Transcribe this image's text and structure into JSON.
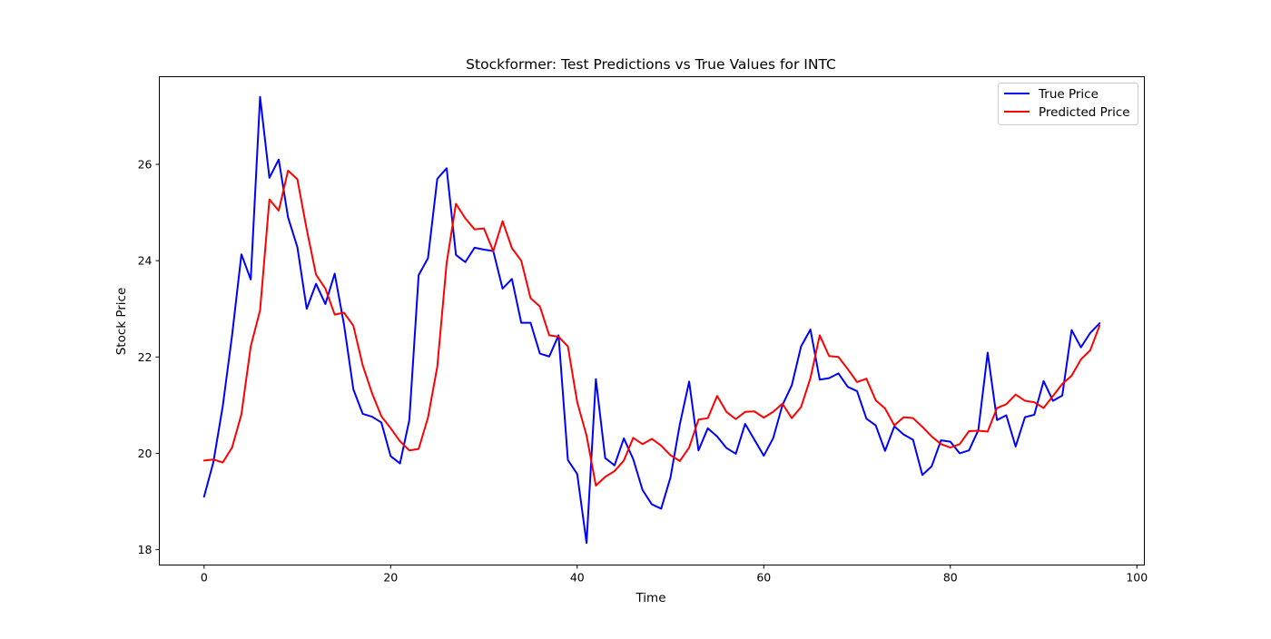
{
  "chart_data": {
    "type": "line",
    "title": "Stockformer: Test Predictions vs True Values for INTC",
    "xlabel": "Time",
    "ylabel": "Stock Price",
    "xlim": [
      -4.8,
      100.8
    ],
    "ylim": [
      17.68,
      27.82
    ],
    "xticks": [
      0,
      20,
      40,
      60,
      80,
      100
    ],
    "yticks": [
      18,
      20,
      22,
      24,
      26
    ],
    "grid": false,
    "legend_position": "top-right",
    "series": [
      {
        "name": "True Price",
        "color": "#0000ff",
        "x": [
          0,
          1,
          2,
          3,
          4,
          5,
          6,
          7,
          8,
          9,
          10,
          11,
          12,
          13,
          14,
          15,
          16,
          17,
          18,
          19,
          20,
          21,
          22,
          23,
          24,
          25,
          26,
          27,
          28,
          29,
          30,
          31,
          32,
          33,
          34,
          35,
          36,
          37,
          38,
          39,
          40,
          41,
          42,
          43,
          44,
          45,
          46,
          47,
          48,
          49,
          50,
          51,
          52,
          53,
          54,
          55,
          56,
          57,
          58,
          59,
          60,
          61,
          62,
          63,
          64,
          65,
          66,
          67,
          68,
          69,
          70,
          71,
          72,
          73,
          74,
          75,
          76,
          77,
          78,
          79,
          80,
          81,
          82,
          83,
          84,
          85,
          86,
          87,
          88,
          89,
          90,
          91,
          92,
          93,
          94,
          95,
          96
        ],
        "values": [
          19.1,
          19.82,
          20.98,
          22.45,
          24.13,
          23.61,
          27.4,
          25.72,
          26.1,
          24.9,
          24.28,
          23.0,
          23.52,
          23.1,
          23.73,
          22.67,
          21.33,
          20.82,
          20.76,
          20.64,
          19.94,
          19.79,
          20.69,
          23.7,
          24.05,
          25.7,
          25.92,
          24.12,
          23.97,
          24.27,
          24.23,
          24.2,
          23.42,
          23.62,
          22.71,
          22.71,
          22.07,
          22.01,
          22.45,
          19.86,
          19.57,
          18.14,
          21.54,
          19.9,
          19.75,
          20.31,
          19.88,
          19.24,
          18.94,
          18.85,
          19.5,
          20.6,
          21.49,
          20.06,
          20.52,
          20.35,
          20.11,
          19.99,
          20.61,
          20.28,
          19.95,
          20.31,
          21.0,
          21.41,
          22.22,
          22.57,
          21.53,
          21.56,
          21.66,
          21.38,
          21.29,
          20.72,
          20.58,
          20.05,
          20.56,
          20.39,
          20.28,
          19.55,
          19.73,
          20.27,
          20.24,
          20.0,
          20.06,
          20.48,
          22.09,
          20.69,
          20.79,
          20.14,
          20.75,
          20.8,
          21.5,
          21.09,
          21.2,
          22.56,
          22.2,
          22.5,
          22.7
        ]
      },
      {
        "name": "Predicted Price",
        "color": "#ff0000",
        "x": [
          0,
          1,
          2,
          3,
          4,
          5,
          6,
          7,
          8,
          9,
          10,
          11,
          12,
          13,
          14,
          15,
          16,
          17,
          18,
          19,
          20,
          21,
          22,
          23,
          24,
          25,
          26,
          27,
          28,
          29,
          30,
          31,
          32,
          33,
          34,
          35,
          36,
          37,
          38,
          39,
          40,
          41,
          42,
          43,
          44,
          45,
          46,
          47,
          48,
          49,
          50,
          51,
          52,
          53,
          54,
          55,
          56,
          57,
          58,
          59,
          60,
          61,
          62,
          63,
          64,
          65,
          66,
          67,
          68,
          69,
          70,
          71,
          72,
          73,
          74,
          75,
          76,
          77,
          78,
          79,
          80,
          81,
          82,
          83,
          84,
          85,
          86,
          87,
          88,
          89,
          90,
          91,
          92,
          93,
          94,
          95,
          96
        ],
        "values": [
          19.85,
          19.87,
          19.81,
          20.12,
          20.81,
          22.22,
          22.97,
          25.27,
          25.04,
          25.87,
          25.69,
          24.65,
          23.71,
          23.42,
          22.88,
          22.92,
          22.65,
          21.83,
          21.25,
          20.77,
          20.52,
          20.25,
          20.06,
          20.09,
          20.74,
          21.8,
          23.95,
          25.18,
          24.88,
          24.65,
          24.67,
          24.2,
          24.82,
          24.26,
          24.0,
          23.22,
          23.05,
          22.45,
          22.42,
          22.22,
          21.06,
          20.37,
          19.33,
          19.51,
          19.63,
          19.85,
          20.32,
          20.19,
          20.3,
          20.16,
          19.96,
          19.84,
          20.12,
          20.7,
          20.73,
          21.19,
          20.86,
          20.71,
          20.86,
          20.87,
          20.74,
          20.86,
          21.03,
          20.73,
          20.96,
          21.56,
          22.45,
          22.02,
          22.0,
          21.75,
          21.48,
          21.55,
          21.1,
          20.93,
          20.58,
          20.75,
          20.73,
          20.55,
          20.35,
          20.19,
          20.12,
          20.19,
          20.46,
          20.47,
          20.45,
          20.94,
          21.02,
          21.22,
          21.09,
          21.06,
          20.94,
          21.19,
          21.44,
          21.61,
          21.95,
          22.14,
          22.65
        ]
      }
    ]
  }
}
